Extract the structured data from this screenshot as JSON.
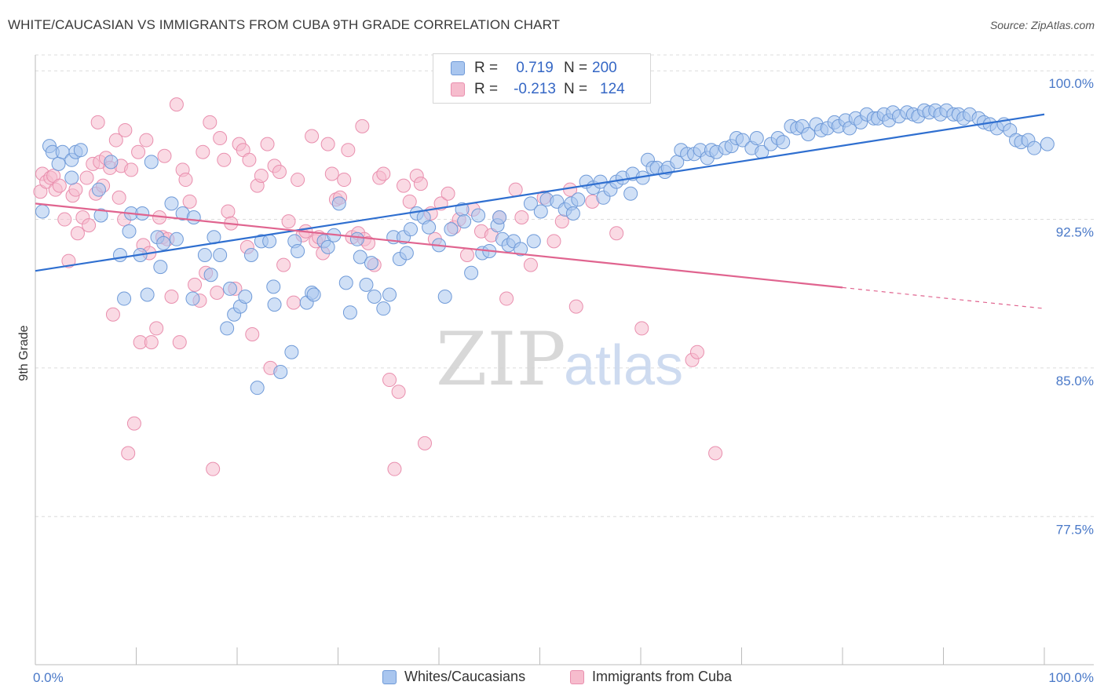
{
  "header": {
    "title": "WHITE/CAUCASIAN VS IMMIGRANTS FROM CUBA 9TH GRADE CORRELATION CHART",
    "source": "Source: ZipAtlas.com"
  },
  "legend": {
    "rows": [
      {
        "r_label": "R =",
        "r_value": "0.719",
        "n_label": "N =",
        "n_value": "200"
      },
      {
        "r_label": "R =",
        "r_value": "-0.213",
        "n_label": "N =",
        "n_value": "124"
      }
    ]
  },
  "bottom_legend": [
    "Whites/Caucasians",
    "Immigrants from Cuba"
  ],
  "watermark": {
    "part1": "ZIP",
    "part2": "atlas"
  },
  "colors": {
    "blue_fill": "#a9c6ef",
    "blue_stroke": "#6f9ad8",
    "blue_line": "#2f6fd0",
    "pink_fill": "#f6bccd",
    "pink_stroke": "#e98fae",
    "pink_line": "#e0648f",
    "tick_text": "#4a79c8",
    "grid": "#dcdcdc"
  },
  "chart_data": {
    "type": "scatter",
    "title": "WHITE/CAUCASIAN VS IMMIGRANTS FROM CUBA 9TH GRADE CORRELATION CHART",
    "xlabel": "",
    "ylabel": "9th Grade",
    "xlim": [
      0,
      100
    ],
    "ylim": [
      70.5,
      100.8
    ],
    "x_tick_labels": [
      "0.0%",
      "100.0%"
    ],
    "y_ticks": [
      77.5,
      85.0,
      92.5,
      100.0
    ],
    "y_tick_labels": [
      "77.5%",
      "85.0%",
      "92.5%",
      "100.0%"
    ],
    "series": [
      {
        "name": "Whites/Caucasians",
        "R": 0.719,
        "N": 200,
        "trend": {
          "x0": 0,
          "y0": 89.9,
          "x1": 100,
          "y1": 97.8
        },
        "points": [
          [
            0.7,
            92.9
          ],
          [
            1.4,
            96.2
          ],
          [
            1.7,
            95.9
          ],
          [
            2.3,
            95.3
          ],
          [
            2.7,
            95.9
          ],
          [
            3.6,
            94.6
          ],
          [
            3.6,
            95.5
          ],
          [
            4,
            95.9
          ],
          [
            4.5,
            96
          ],
          [
            6.3,
            94
          ],
          [
            6.5,
            92.7
          ],
          [
            7.5,
            95.4
          ],
          [
            8.4,
            90.7
          ],
          [
            8.8,
            88.5
          ],
          [
            9.3,
            91.9
          ],
          [
            9.5,
            92.8
          ],
          [
            10.4,
            90.7
          ],
          [
            10.6,
            92.8
          ],
          [
            11.1,
            88.7
          ],
          [
            11.5,
            95.4
          ],
          [
            12.1,
            91.6
          ],
          [
            12.4,
            90.1
          ],
          [
            12.7,
            91.3
          ],
          [
            13.5,
            93.3
          ],
          [
            14,
            91.5
          ],
          [
            14.6,
            92.8
          ],
          [
            15.6,
            88.5
          ],
          [
            15.7,
            92.6
          ],
          [
            16.8,
            90.7
          ],
          [
            17.4,
            89.7
          ],
          [
            17.7,
            91.6
          ],
          [
            18.3,
            90.7
          ],
          [
            19,
            87
          ],
          [
            19.3,
            89
          ],
          [
            19.7,
            87.7
          ],
          [
            20.3,
            88.1
          ],
          [
            20.8,
            88.6
          ],
          [
            21.4,
            90.7
          ],
          [
            22,
            84
          ],
          [
            22.4,
            91.4
          ],
          [
            23.2,
            91.4
          ],
          [
            23.6,
            89.1
          ],
          [
            23.7,
            88.2
          ],
          [
            24.3,
            84.8
          ],
          [
            25.4,
            85.8
          ],
          [
            25.7,
            91.4
          ],
          [
            26,
            90.9
          ],
          [
            26.9,
            88.3
          ],
          [
            27.4,
            88.8
          ],
          [
            27.6,
            88.7
          ],
          [
            28.6,
            91.4
          ],
          [
            29,
            91.1
          ],
          [
            29.6,
            91.7
          ],
          [
            30.1,
            93.3
          ],
          [
            30.8,
            89.3
          ],
          [
            31.2,
            87.8
          ],
          [
            31.9,
            91.5
          ],
          [
            32.2,
            90.6
          ],
          [
            32.8,
            89.2
          ],
          [
            33.3,
            90.3
          ],
          [
            33.6,
            88.6
          ],
          [
            34.5,
            88
          ],
          [
            35.1,
            88.7
          ],
          [
            35.5,
            91.6
          ],
          [
            36.1,
            90.5
          ],
          [
            36.5,
            91.6
          ],
          [
            36.8,
            90.8
          ],
          [
            37.2,
            92
          ],
          [
            37.8,
            92.8
          ],
          [
            38.5,
            92.6
          ],
          [
            39,
            92.1
          ],
          [
            40,
            91.2
          ],
          [
            40.6,
            88.6
          ],
          [
            41.2,
            92
          ],
          [
            42.3,
            93
          ],
          [
            42.5,
            92.4
          ],
          [
            43.2,
            89.8
          ],
          [
            43.9,
            92.7
          ],
          [
            44.3,
            90.8
          ],
          [
            45,
            90.9
          ],
          [
            45.8,
            92.2
          ],
          [
            46,
            92.6
          ],
          [
            46.3,
            91.5
          ],
          [
            46.9,
            91.2
          ],
          [
            47.4,
            91.4
          ],
          [
            48.1,
            91
          ],
          [
            49.1,
            93.3
          ],
          [
            49.4,
            91.4
          ],
          [
            50.1,
            92.9
          ],
          [
            50.7,
            93.5
          ],
          [
            51.7,
            93.4
          ],
          [
            52.5,
            93
          ],
          [
            53.1,
            93.3
          ],
          [
            53.3,
            92.8
          ],
          [
            53.8,
            93.5
          ],
          [
            54.6,
            94.4
          ],
          [
            55.3,
            94.1
          ],
          [
            56,
            94.4
          ],
          [
            56.3,
            93.6
          ],
          [
            57,
            94
          ],
          [
            57.6,
            94.4
          ],
          [
            58.2,
            94.6
          ],
          [
            59,
            93.8
          ],
          [
            59.2,
            94.8
          ],
          [
            60.2,
            94.6
          ],
          [
            60.7,
            95.5
          ],
          [
            61.2,
            95.1
          ],
          [
            61.6,
            95.1
          ],
          [
            62.4,
            94.9
          ],
          [
            62.7,
            95.1
          ],
          [
            63.6,
            95.4
          ],
          [
            64,
            96
          ],
          [
            64.6,
            95.8
          ],
          [
            65.3,
            95.8
          ],
          [
            65.9,
            96
          ],
          [
            66.6,
            95.6
          ],
          [
            67,
            96
          ],
          [
            67.5,
            95.9
          ],
          [
            68.4,
            96.1
          ],
          [
            69,
            96.2
          ],
          [
            69.5,
            96.6
          ],
          [
            70.1,
            96.5
          ],
          [
            71,
            96.1
          ],
          [
            71.5,
            96.6
          ],
          [
            72,
            95.9
          ],
          [
            72.9,
            96.3
          ],
          [
            73.6,
            96.6
          ],
          [
            74.1,
            96.4
          ],
          [
            74.9,
            97.2
          ],
          [
            75.5,
            97.1
          ],
          [
            76,
            97.2
          ],
          [
            76.6,
            96.8
          ],
          [
            77.4,
            97.3
          ],
          [
            77.9,
            97
          ],
          [
            78.5,
            97.1
          ],
          [
            79.2,
            97.4
          ],
          [
            79.6,
            97.2
          ],
          [
            80.3,
            97.5
          ],
          [
            80.7,
            97.1
          ],
          [
            81.3,
            97.6
          ],
          [
            81.8,
            97.4
          ],
          [
            82.4,
            97.8
          ],
          [
            83.1,
            97.6
          ],
          [
            83.5,
            97.6
          ],
          [
            84.1,
            97.8
          ],
          [
            84.6,
            97.5
          ],
          [
            85,
            97.9
          ],
          [
            85.6,
            97.7
          ],
          [
            86.4,
            97.9
          ],
          [
            87,
            97.8
          ],
          [
            87.5,
            97.7
          ],
          [
            88.1,
            98
          ],
          [
            88.6,
            97.9
          ],
          [
            89.2,
            98
          ],
          [
            89.7,
            97.8
          ],
          [
            90.3,
            98
          ],
          [
            91,
            97.8
          ],
          [
            91.5,
            97.8
          ],
          [
            92,
            97.6
          ],
          [
            92.6,
            97.8
          ],
          [
            93.5,
            97.6
          ],
          [
            94,
            97.4
          ],
          [
            94.6,
            97.3
          ],
          [
            95.3,
            97.1
          ],
          [
            96,
            97.3
          ],
          [
            96.6,
            97
          ],
          [
            97.2,
            96.5
          ],
          [
            97.7,
            96.4
          ],
          [
            98.4,
            96.5
          ],
          [
            99,
            96.1
          ],
          [
            100.3,
            96.3
          ]
        ]
      },
      {
        "name": "Immigrants from Cuba",
        "R": -0.213,
        "N": 124,
        "trend": {
          "x0": 0,
          "y0": 93.3,
          "x1": 100,
          "y1": 88.0,
          "solid_until_x": 80
        },
        "dashed_from_x": 80,
        "points": [
          [
            0.5,
            93.9
          ],
          [
            0.7,
            94.8
          ],
          [
            1.1,
            94.4
          ],
          [
            1.5,
            94.6
          ],
          [
            1.8,
            94.7
          ],
          [
            2,
            94
          ],
          [
            2.4,
            94.2
          ],
          [
            2.9,
            92.5
          ],
          [
            3.3,
            90.4
          ],
          [
            3.7,
            93.7
          ],
          [
            4,
            94
          ],
          [
            4.2,
            91.8
          ],
          [
            4.7,
            92.6
          ],
          [
            5.1,
            94.6
          ],
          [
            5.3,
            92.2
          ],
          [
            5.7,
            95.3
          ],
          [
            6,
            93.8
          ],
          [
            6.2,
            97.4
          ],
          [
            6.4,
            95.4
          ],
          [
            6.7,
            94.2
          ],
          [
            7,
            95.6
          ],
          [
            7.4,
            95.1
          ],
          [
            7.7,
            87.7
          ],
          [
            8,
            96.5
          ],
          [
            8.3,
            93.6
          ],
          [
            8.5,
            95.2
          ],
          [
            8.8,
            92.5
          ],
          [
            8.9,
            97
          ],
          [
            9.2,
            80.7
          ],
          [
            9.5,
            95
          ],
          [
            9.8,
            82.2
          ],
          [
            10.2,
            95.9
          ],
          [
            10.4,
            86.3
          ],
          [
            10.7,
            91.2
          ],
          [
            11,
            96.5
          ],
          [
            11.3,
            90.8
          ],
          [
            11.5,
            86.3
          ],
          [
            12,
            87
          ],
          [
            12.3,
            92.6
          ],
          [
            12.6,
            91.6
          ],
          [
            12.8,
            95.7
          ],
          [
            13.1,
            91.5
          ],
          [
            13.5,
            88.6
          ],
          [
            14,
            98.3
          ],
          [
            14.3,
            86.3
          ],
          [
            14.6,
            95
          ],
          [
            14.9,
            94.5
          ],
          [
            15.3,
            93.4
          ],
          [
            15.8,
            89.2
          ],
          [
            16.3,
            88.4
          ],
          [
            16.6,
            95.9
          ],
          [
            16.9,
            89.8
          ],
          [
            17.3,
            97.4
          ],
          [
            17.6,
            79.9
          ],
          [
            18,
            88.8
          ],
          [
            18.3,
            96.6
          ],
          [
            18.7,
            95.5
          ],
          [
            19.1,
            92.9
          ],
          [
            19.4,
            92.3
          ],
          [
            19.8,
            89
          ],
          [
            20.2,
            96.3
          ],
          [
            20.6,
            96
          ],
          [
            21,
            91.1
          ],
          [
            21.2,
            95.5
          ],
          [
            21.5,
            86.7
          ],
          [
            22,
            94.2
          ],
          [
            22.4,
            94.7
          ],
          [
            23,
            96.3
          ],
          [
            23.3,
            85
          ],
          [
            23.7,
            95.2
          ],
          [
            24.2,
            94.9
          ],
          [
            24.6,
            90.2
          ],
          [
            25.1,
            92.4
          ],
          [
            25.6,
            88.3
          ],
          [
            26,
            94.5
          ],
          [
            26.5,
            91.7
          ],
          [
            26.8,
            91.9
          ],
          [
            27.4,
            96.7
          ],
          [
            27.8,
            91.4
          ],
          [
            28.1,
            91.6
          ],
          [
            28.5,
            90.8
          ],
          [
            29,
            96.3
          ],
          [
            29.4,
            94.8
          ],
          [
            29.8,
            93.5
          ],
          [
            30.2,
            93.6
          ],
          [
            30.6,
            94.5
          ],
          [
            31,
            96
          ],
          [
            31.4,
            91.6
          ],
          [
            32,
            91.8
          ],
          [
            32.4,
            97.2
          ],
          [
            32.6,
            91.5
          ],
          [
            33,
            91.3
          ],
          [
            33.6,
            90.2
          ],
          [
            34.1,
            94.6
          ],
          [
            34.5,
            94.8
          ],
          [
            35.1,
            84.4
          ],
          [
            35.6,
            79.9
          ],
          [
            36,
            83.8
          ],
          [
            36.5,
            94.2
          ],
          [
            37.1,
            93.4
          ],
          [
            37.8,
            94.7
          ],
          [
            38.2,
            94.3
          ],
          [
            38.6,
            81.2
          ],
          [
            39.2,
            92.8
          ],
          [
            39.6,
            91.5
          ],
          [
            40.2,
            93.3
          ],
          [
            40.9,
            93.8
          ],
          [
            41.5,
            92.1
          ],
          [
            42,
            92.5
          ],
          [
            42.8,
            90.7
          ],
          [
            43.4,
            93
          ],
          [
            44.2,
            91.9
          ],
          [
            45.2,
            91.7
          ],
          [
            46,
            92.6
          ],
          [
            46.7,
            88.5
          ],
          [
            47.6,
            94
          ],
          [
            48.2,
            92.6
          ],
          [
            49.1,
            90.2
          ],
          [
            50.4,
            93.6
          ],
          [
            51.4,
            91.4
          ],
          [
            52.2,
            92.4
          ],
          [
            53,
            94
          ],
          [
            53.6,
            88.1
          ],
          [
            55.2,
            93.4
          ],
          [
            57.6,
            91.8
          ],
          [
            60.1,
            87
          ],
          [
            65.1,
            85.4
          ],
          [
            65.6,
            85.8
          ],
          [
            67.4,
            80.7
          ]
        ]
      }
    ]
  }
}
